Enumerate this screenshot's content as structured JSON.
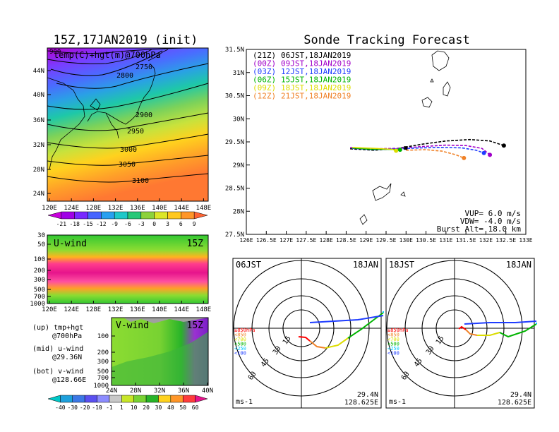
{
  "left_title": "15Z,17JAN2019 (init)",
  "right_title": "Sonde Tracking Forecast",
  "colors": {
    "black": "#000000",
    "purple": "#a000c8",
    "blue": "#1e3cff",
    "green": "#00b400",
    "yellow": "#dcdc00",
    "orange": "#f08228"
  },
  "map_panel": {
    "label": "temp(C)+hgt(m)@700hPa",
    "corner_value": "900",
    "contour_labels": [
      "2750",
      "2800",
      "2900",
      "2950",
      "3000",
      "3050",
      "3100"
    ],
    "lat_ticks": [
      "44N",
      "40N",
      "36N",
      "32N",
      "28N",
      "24N"
    ],
    "lon_ticks": [
      "120E",
      "124E",
      "128E",
      "132E",
      "136E",
      "140E",
      "144E",
      "148E"
    ]
  },
  "temp_colorbar": [
    "-21",
    "-18",
    "-15",
    "-12",
    "-9",
    "-6",
    "-3",
    "0",
    "3",
    "6",
    "9"
  ],
  "uwind_panel": {
    "label": "U-wind",
    "time": "15Z",
    "p_ticks": [
      "30",
      "50",
      "100",
      "200",
      "300",
      "500",
      "700",
      "1000"
    ],
    "lon_ticks": [
      "120E",
      "124E",
      "128E",
      "132E",
      "136E",
      "140E",
      "144E",
      "148E"
    ]
  },
  "vwind_panel": {
    "label": "V-wind",
    "time": "15Z",
    "p_ticks": [
      "100",
      "200",
      "300",
      "500",
      "700",
      "1000"
    ],
    "lat_ticks": [
      "24N",
      "28N",
      "32N",
      "36N",
      "40N"
    ]
  },
  "wind_colorbar": [
    "-40",
    "-30",
    "-20",
    "-10",
    "-1",
    "1",
    "10",
    "20",
    "30",
    "40",
    "50",
    "60"
  ],
  "legend_notes": [
    {
      "title": "(up) tmp+hgt",
      "sub": "@700hPa"
    },
    {
      "title": "(mid) u-wind",
      "sub": "@29.36N"
    },
    {
      "title": "(bot) v-wind",
      "sub": "@128.66E"
    }
  ],
  "tracks": [
    {
      "code": "(21Z)",
      "time": "06JST,18JAN2019",
      "color": "#000000",
      "dash": true,
      "points": [
        [
          128.6,
          29.35
        ],
        [
          129.2,
          29.32
        ],
        [
          129.8,
          29.36
        ],
        [
          130.4,
          29.45
        ],
        [
          131.0,
          29.52
        ],
        [
          131.6,
          29.55
        ],
        [
          132.1,
          29.52
        ],
        [
          132.45,
          29.42
        ]
      ]
    },
    {
      "code": "(00Z)",
      "time": "09JST,18JAN2019",
      "color": "#a000c8",
      "dash": true,
      "points": [
        [
          128.6,
          29.38
        ],
        [
          129.2,
          29.35
        ],
        [
          129.8,
          29.36
        ],
        [
          130.4,
          29.4
        ],
        [
          131.0,
          29.43
        ],
        [
          131.5,
          29.42
        ],
        [
          131.9,
          29.36
        ],
        [
          132.1,
          29.22
        ]
      ]
    },
    {
      "code": "(03Z)",
      "time": "12JST,18JAN2019",
      "color": "#1e3cff",
      "dash": true,
      "points": [
        [
          128.65,
          29.36
        ],
        [
          129.2,
          29.33
        ],
        [
          129.8,
          29.35
        ],
        [
          130.4,
          29.37
        ],
        [
          130.9,
          29.38
        ],
        [
          131.4,
          29.37
        ],
        [
          131.75,
          29.32
        ],
        [
          131.95,
          29.26
        ]
      ]
    },
    {
      "code": "(06Z)",
      "time": "15JST,18JAN2019",
      "color": "#00b400",
      "dash": false,
      "points": [
        [
          128.65,
          29.37
        ],
        [
          129.1,
          29.34
        ],
        [
          129.5,
          29.34
        ],
        [
          129.85,
          29.33
        ]
      ]
    },
    {
      "code": "(09Z)",
      "time": "18JST,18JAN2019",
      "color": "#dcdc00",
      "dash": false,
      "points": [
        [
          128.65,
          29.38
        ],
        [
          129.2,
          29.36
        ],
        [
          129.65,
          29.34
        ],
        [
          129.75,
          29.31
        ]
      ]
    },
    {
      "code": "(12Z)",
      "time": "21JST,18JAN2019",
      "color": "#f08228",
      "dash": true,
      "points": [
        [
          130.0,
          29.32
        ],
        [
          130.5,
          29.33
        ],
        [
          130.9,
          29.3
        ],
        [
          131.25,
          29.22
        ],
        [
          131.45,
          29.15
        ]
      ]
    }
  ],
  "track_axes": {
    "lat_ticks": [
      "31.5N",
      "31N",
      "30.5N",
      "30N",
      "29.5N",
      "29N",
      "28.5N",
      "28N",
      "27.5N"
    ],
    "lon_ticks": [
      "126E",
      "126.5E",
      "127E",
      "127.5E",
      "128E",
      "128.5E",
      "129E",
      "129.5E",
      "130E",
      "130.5E",
      "131E",
      "131.5E",
      "132E",
      "132.5E",
      "133E"
    ],
    "lat_range": [
      27.5,
      31.5
    ],
    "lon_range": [
      126,
      133
    ]
  },
  "params": {
    "vup": "VUP=  6.0 m/s",
    "vdw": "VDW= -4.0 m/s",
    "burst": "Burst Alt= 18.0 km"
  },
  "hodographs": [
    {
      "time": "06JST",
      "date": "18JAN",
      "ring_labels": [
        "15",
        "30",
        "45",
        "60"
      ],
      "pressure_legend": [
        "≥850hPa",
        "<850",
        "<700",
        "<500",
        "<250",
        "<100"
      ],
      "unit": "ms-1",
      "lat": "29.4N",
      "lon": "128.625E"
    },
    {
      "time": "18JST",
      "date": "18JAN",
      "ring_labels": [
        "15",
        "30",
        "45",
        "60"
      ],
      "pressure_legend": [
        "≥850hPa",
        "<850",
        "<700",
        "<500",
        "<250",
        "<100"
      ],
      "unit": "ms-1",
      "lat": "29.4N",
      "lon": "128.625E"
    }
  ],
  "pressure_colors": [
    "#ff0000",
    "#f08228",
    "#dcdc00",
    "#00b400",
    "#00c8ff",
    "#1e3cff"
  ]
}
